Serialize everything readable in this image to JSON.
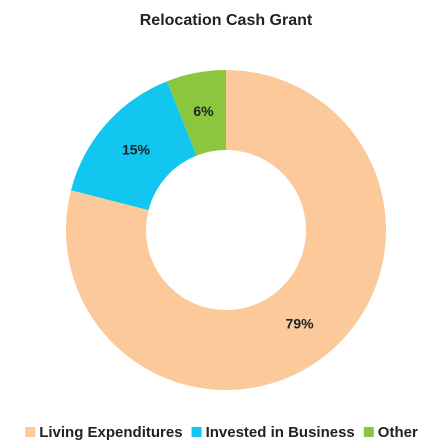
{
  "chart_data": {
    "type": "donut",
    "title": "Relocation Cash Grant",
    "categories": [
      "Living Expenditures",
      "Invested in Business",
      "Other"
    ],
    "values": [
      79,
      15,
      6
    ],
    "value_labels": [
      "79%",
      "15%",
      "6%"
    ],
    "colors": [
      "#fbc99a",
      "#11c6ef",
      "#8cc63e"
    ]
  }
}
